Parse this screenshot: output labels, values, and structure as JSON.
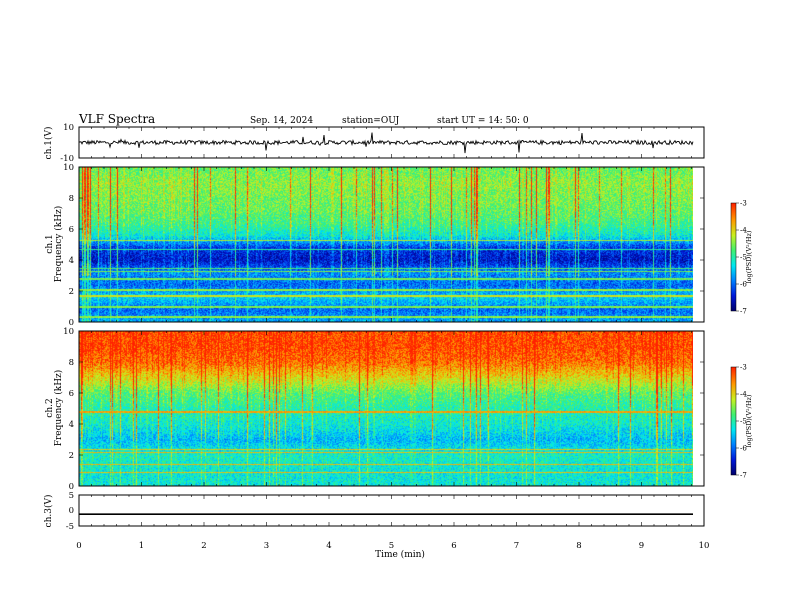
{
  "header": {
    "title": "VLF Spectra",
    "date": "Sep. 14, 2024",
    "station": "station=OUJ",
    "start": "start UT =  14: 50: 0"
  },
  "colors": {
    "spectrum": [
      "#00006a",
      "#0018d8",
      "#0080ff",
      "#00e8f0",
      "#40f070",
      "#c8f020",
      "#ff9a00",
      "#ff2000"
    ],
    "trace": "#000000"
  },
  "chart_data": [
    {
      "type": "line",
      "name": "ch1-waveform",
      "ylabel": "ch.1(V)",
      "ylim": [
        -10,
        10
      ],
      "yticks": [
        "10",
        "-10"
      ],
      "xlim": [
        0,
        10
      ],
      "baseline": 0,
      "note_values": "noisy trace roughly between -2 and +2 V with occasional spikes"
    },
    {
      "type": "heatmap",
      "name": "ch1-spectrogram",
      "ylabel": "ch.1\nFrequency (kHz)",
      "ylim": [
        0,
        10
      ],
      "yticks": [
        "0",
        "2",
        "4",
        "6",
        "8",
        "10"
      ],
      "xlim": [
        0,
        9.8
      ],
      "zlabel": "log(PSD)(V²/Hz)",
      "zlim": [
        -7,
        -3
      ],
      "zticks": [
        "-3",
        "-4",
        "-5",
        "-6",
        "-7"
      ],
      "profile_khz_level": [
        [
          0,
          0.35
        ],
        [
          0.8,
          0.25
        ],
        [
          1.6,
          0.4
        ],
        [
          2.4,
          0.25
        ],
        [
          3.2,
          0.3
        ],
        [
          4.0,
          0.12
        ],
        [
          4.8,
          0.18
        ],
        [
          5.6,
          0.45
        ],
        [
          6.4,
          0.55
        ],
        [
          7.2,
          0.6
        ],
        [
          8.0,
          0.62
        ],
        [
          9.0,
          0.65
        ],
        [
          10.0,
          0.6
        ]
      ]
    },
    {
      "type": "heatmap",
      "name": "ch2-spectrogram",
      "ylabel": "ch.2\nFrequency (kHz)",
      "ylim": [
        0,
        10
      ],
      "yticks": [
        "0",
        "2",
        "4",
        "6",
        "8",
        "10"
      ],
      "xlim": [
        0,
        9.8
      ],
      "zlabel": "log(PSD)(V²/Hz)",
      "zlim": [
        -7,
        -3
      ],
      "zticks": [
        "-3",
        "-4",
        "-5",
        "-6",
        "-7"
      ],
      "profile_khz_level": [
        [
          0,
          0.45
        ],
        [
          1.0,
          0.45
        ],
        [
          2.0,
          0.48
        ],
        [
          3.0,
          0.36
        ],
        [
          4.0,
          0.46
        ],
        [
          5.0,
          0.5
        ],
        [
          6.0,
          0.58
        ],
        [
          7.0,
          0.75
        ],
        [
          8.0,
          0.9
        ],
        [
          9.0,
          0.95
        ],
        [
          10.0,
          0.95
        ]
      ]
    },
    {
      "type": "line",
      "name": "ch3-waveform",
      "ylabel": "ch.3(V)",
      "ylim": [
        -5,
        5
      ],
      "yticks": [
        "5",
        "0",
        "-5"
      ],
      "xlim": [
        0,
        10
      ],
      "values_constant": -1.2
    }
  ],
  "xaxis": {
    "label": "Time (min)",
    "ticks": [
      "0",
      "1",
      "2",
      "3",
      "4",
      "5",
      "6",
      "7",
      "8",
      "9",
      "10"
    ]
  }
}
